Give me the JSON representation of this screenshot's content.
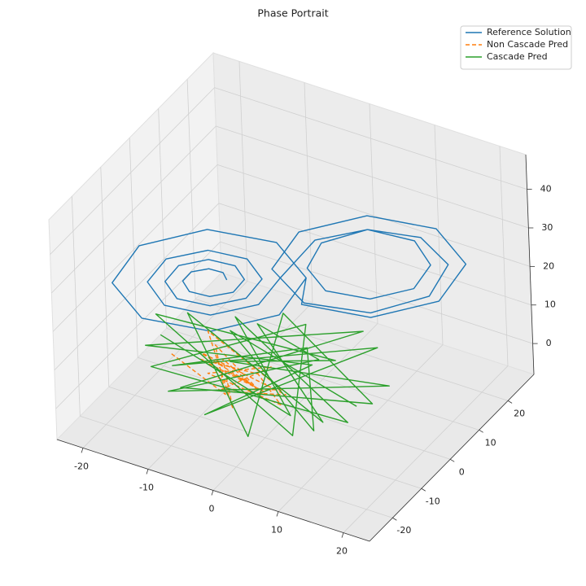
{
  "chart_data": {
    "type": "line3d",
    "title": "Phase Portrait",
    "xlim": [
      -24,
      24
    ],
    "ylim": [
      -28,
      29
    ],
    "zlim": [
      -8,
      49
    ],
    "xticks": [
      -20,
      -10,
      0,
      10,
      20
    ],
    "yticks": [
      -20,
      -10,
      0,
      10,
      20
    ],
    "zticks": [
      0,
      10,
      20,
      30,
      40
    ],
    "grid": true,
    "legend": "upper right",
    "series": [
      {
        "name": "Reference Solution",
        "color": "#1f77b4",
        "dash": false,
        "x": [
          -6.5,
          -6.9,
          -8.5,
          -10.5,
          -11.5,
          -10.8,
          -8.5,
          -5.8,
          -4.5,
          -5.5,
          -8.5,
          -11.9,
          -13.5,
          -12.2,
          -8.5,
          -4.4,
          -2.5,
          -4.1,
          -8.5,
          -13.3,
          -15.5,
          -13.7,
          -8.5,
          -3,
          -0.5,
          2.5,
          8.5,
          13.8,
          15.5,
          13.5,
          8.5,
          3.5,
          1.5,
          3.2,
          8.5,
          14.5,
          17.5,
          15.2,
          8.5,
          1,
          -2.5,
          0.7,
          8.5,
          16.3,
          19.5,
          16.3,
          8.5,
          0.7,
          2.5,
          -0.7,
          -8.5,
          -16.3,
          -19.5,
          -16.3,
          -8.5,
          -0.7,
          2.5
        ],
        "y": [
          -6.9,
          -7.2,
          -8.5,
          -10.1,
          -10.9,
          -10.3,
          -8.5,
          -6.4,
          -5.3,
          -6.1,
          -8.5,
          -11.2,
          -12.5,
          -11.5,
          -8.5,
          -5.2,
          -3.7,
          -5,
          -8.5,
          -12.3,
          -14.1,
          -12.6,
          -8.5,
          -4.1,
          -2.1,
          3.7,
          8.5,
          12.7,
          14.1,
          12.5,
          8.5,
          4.5,
          2.9,
          4.3,
          8.5,
          13.3,
          15.7,
          13.9,
          8.5,
          2.5,
          -0.3,
          2.3,
          8.5,
          14.7,
          17.3,
          14.7,
          8.5,
          2.3,
          0.3,
          -2.3,
          -8.5,
          -14.7,
          -17.3,
          -14.7,
          -8.5,
          -2.3,
          0.3
        ],
        "z": [
          27,
          28.9,
          30,
          29.3,
          27,
          24.2,
          22.8,
          23.8,
          27,
          30.6,
          32.4,
          31,
          27,
          22.5,
          20.4,
          22.1,
          27,
          32.3,
          34.8,
          32.8,
          27,
          20.8,
          18,
          20.4,
          27,
          34.2,
          36.6,
          33.4,
          27,
          21,
          18.6,
          21,
          27,
          33.4,
          36.6,
          34.2,
          27,
          18.9,
          15,
          18,
          27,
          36.4,
          40.2,
          36.4,
          27,
          17.6,
          13.8,
          17.6,
          27,
          36.4,
          40.2,
          36.4,
          27,
          17.6,
          13.8,
          17.6,
          27
        ]
      },
      {
        "name": "Non Cascade Pred",
        "color": "#ff7f0e",
        "dash": true,
        "x": [
          -15,
          -5,
          -10,
          0,
          -8,
          -3,
          -12,
          2,
          -6,
          -1,
          -9,
          4,
          -4,
          -11,
          1,
          -7,
          -2,
          -13,
          3,
          -5
        ],
        "y": [
          -8,
          -12,
          -4,
          -10,
          -6,
          -14,
          -2,
          -8,
          -11,
          -5,
          -9,
          -13,
          -3,
          -7,
          -12,
          -6,
          -10,
          -4,
          -9,
          -11
        ],
        "z": [
          4,
          2,
          6,
          3,
          5,
          1,
          7,
          4,
          2,
          6,
          3,
          5,
          1,
          4,
          6,
          2,
          5,
          3,
          4,
          2
        ]
      },
      {
        "name": "Cascade Pred",
        "color": "#2ca02c",
        "dash": false,
        "x": [
          -18,
          5,
          -10,
          12,
          -15,
          0,
          8,
          -20,
          3,
          -5,
          14,
          -12,
          6,
          -8,
          10,
          -16,
          2,
          -3,
          15,
          -11,
          7,
          -19,
          4,
          -6,
          11,
          -14,
          1,
          9,
          -9,
          13
        ],
        "y": [
          -5,
          -12,
          3,
          -8,
          -15,
          5,
          -18,
          -2,
          8,
          -10,
          2,
          -16,
          -4,
          6,
          -12,
          0,
          -20,
          4,
          -6,
          -14,
          9,
          -8,
          -2,
          -17,
          5,
          -10,
          3,
          -13,
          -1,
          -7
        ],
        "z": [
          5,
          2,
          8,
          1,
          6,
          10,
          3,
          7,
          0,
          9,
          4,
          2,
          11,
          5,
          3,
          8,
          1,
          12,
          6,
          2,
          9,
          4,
          7,
          0,
          10,
          3,
          6,
          1,
          8,
          5
        ]
      }
    ]
  }
}
